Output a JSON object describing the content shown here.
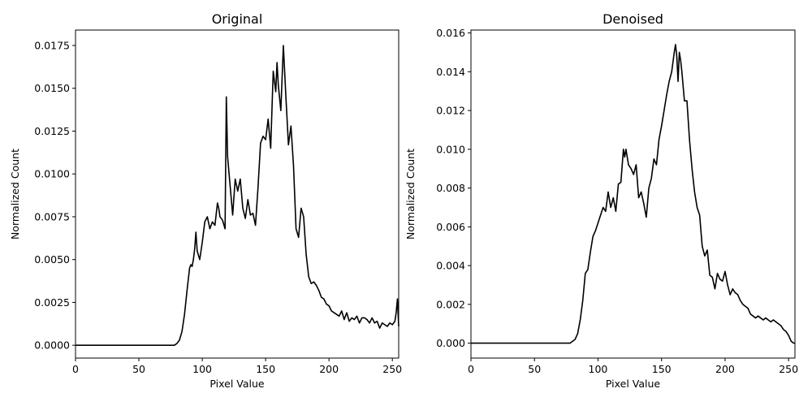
{
  "chart_data": [
    {
      "type": "line",
      "title": "Original",
      "xlabel": "Pixel Value",
      "ylabel": "Normalized Count",
      "xlim": [
        0,
        255
      ],
      "ylim": [
        -0.00075,
        0.0184
      ],
      "xticks": [
        0,
        50,
        100,
        150,
        200,
        250
      ],
      "yticks": [
        0.0,
        0.0025,
        0.005,
        0.0075,
        0.01,
        0.0125,
        0.015,
        0.0175
      ],
      "ytick_labels": [
        "0.0000",
        "0.0025",
        "0.0050",
        "0.0075",
        "0.0100",
        "0.0125",
        "0.0150",
        "0.0175"
      ],
      "grid": false,
      "line_color": "#000000",
      "series": [
        {
          "x": [
            0,
            78,
            80,
            82,
            84,
            86,
            88,
            90,
            91,
            92,
            93,
            94,
            95,
            96,
            98,
            100,
            102,
            104,
            106,
            108,
            110,
            112,
            113,
            114,
            116,
            118,
            119,
            120,
            122,
            124,
            126,
            128,
            130,
            132,
            134,
            136,
            138,
            140,
            142,
            144,
            146,
            148,
            150,
            152,
            154,
            156,
            158,
            159,
            160,
            162,
            164,
            166,
            168,
            170,
            172,
            174,
            176,
            178,
            180,
            182,
            184,
            186,
            188,
            190,
            192,
            194,
            196,
            198,
            200,
            202,
            204,
            206,
            208,
            210,
            212,
            214,
            216,
            218,
            220,
            222,
            224,
            226,
            228,
            230,
            232,
            234,
            236,
            238,
            240,
            242,
            244,
            246,
            248,
            250,
            252,
            253,
            254,
            255
          ],
          "y": [
            0,
            0,
            0.0001,
            0.0003,
            0.0008,
            0.0018,
            0.0032,
            0.0045,
            0.0047,
            0.0046,
            0.005,
            0.0056,
            0.0066,
            0.0055,
            0.005,
            0.006,
            0.0072,
            0.0075,
            0.0068,
            0.0072,
            0.007,
            0.0083,
            0.008,
            0.0075,
            0.0073,
            0.0068,
            0.0145,
            0.011,
            0.0093,
            0.0076,
            0.0097,
            0.009,
            0.0097,
            0.008,
            0.0074,
            0.0085,
            0.0076,
            0.0077,
            0.007,
            0.0092,
            0.0118,
            0.0122,
            0.012,
            0.0132,
            0.0115,
            0.016,
            0.0148,
            0.0165,
            0.0152,
            0.0137,
            0.0175,
            0.0145,
            0.0117,
            0.0128,
            0.0105,
            0.0068,
            0.0063,
            0.008,
            0.0075,
            0.0053,
            0.004,
            0.0036,
            0.0037,
            0.0035,
            0.0032,
            0.0028,
            0.0027,
            0.0024,
            0.0023,
            0.002,
            0.0019,
            0.0018,
            0.0017,
            0.002,
            0.0015,
            0.0019,
            0.0014,
            0.0016,
            0.0015,
            0.0017,
            0.0013,
            0.0016,
            0.0016,
            0.0015,
            0.0013,
            0.0016,
            0.0013,
            0.0014,
            0.001,
            0.0013,
            0.0012,
            0.0011,
            0.0013,
            0.0012,
            0.0014,
            0.0019,
            0.0027,
            0.0011
          ]
        }
      ]
    },
    {
      "type": "line",
      "title": "Denoised",
      "xlabel": "Pixel Value",
      "ylabel": "Normalized Count",
      "xlim": [
        0,
        255
      ],
      "ylim": [
        -0.00077,
        0.01615
      ],
      "xticks": [
        0,
        50,
        100,
        150,
        200,
        250
      ],
      "yticks": [
        0.0,
        0.002,
        0.004,
        0.006,
        0.008,
        0.01,
        0.012,
        0.014,
        0.016
      ],
      "ytick_labels": [
        "0.000",
        "0.002",
        "0.004",
        "0.006",
        "0.008",
        "0.010",
        "0.012",
        "0.014",
        "0.016"
      ],
      "grid": false,
      "line_color": "#000000",
      "series": [
        {
          "x": [
            0,
            78,
            80,
            82,
            84,
            86,
            88,
            90,
            92,
            94,
            96,
            98,
            100,
            102,
            104,
            106,
            108,
            110,
            112,
            114,
            116,
            118,
            120,
            121,
            122,
            124,
            126,
            128,
            130,
            132,
            134,
            136,
            138,
            140,
            142,
            144,
            146,
            148,
            150,
            152,
            154,
            156,
            158,
            160,
            161,
            162,
            163,
            164,
            165,
            166,
            168,
            170,
            172,
            174,
            176,
            178,
            180,
            182,
            184,
            186,
            188,
            190,
            192,
            194,
            196,
            198,
            200,
            202,
            204,
            206,
            208,
            210,
            212,
            214,
            216,
            218,
            220,
            222,
            224,
            226,
            228,
            230,
            232,
            234,
            236,
            238,
            240,
            242,
            244,
            246,
            248,
            250,
            252,
            254,
            255
          ],
          "y": [
            0,
            0,
            0.0001,
            0.0002,
            0.0005,
            0.0012,
            0.0022,
            0.0036,
            0.0038,
            0.0047,
            0.0055,
            0.0058,
            0.0062,
            0.0066,
            0.007,
            0.0068,
            0.0078,
            0.007,
            0.0075,
            0.0068,
            0.0082,
            0.0083,
            0.01,
            0.0096,
            0.01,
            0.0092,
            0.009,
            0.0087,
            0.0092,
            0.0075,
            0.0078,
            0.0072,
            0.0065,
            0.008,
            0.0085,
            0.0095,
            0.0092,
            0.0105,
            0.0112,
            0.012,
            0.0128,
            0.0135,
            0.014,
            0.015,
            0.0154,
            0.0148,
            0.0135,
            0.015,
            0.0146,
            0.014,
            0.0125,
            0.0125,
            0.0105,
            0.009,
            0.0078,
            0.007,
            0.0066,
            0.005,
            0.0045,
            0.0048,
            0.0035,
            0.0034,
            0.0028,
            0.0036,
            0.0033,
            0.0032,
            0.0037,
            0.003,
            0.0025,
            0.0028,
            0.0026,
            0.0025,
            0.0022,
            0.002,
            0.0019,
            0.0018,
            0.0015,
            0.0014,
            0.0013,
            0.0014,
            0.0013,
            0.0012,
            0.0013,
            0.0012,
            0.0011,
            0.0012,
            0.0011,
            0.001,
            0.0009,
            0.0007,
            0.0006,
            0.0004,
            0.0001,
            0.0,
            0.0
          ]
        }
      ]
    }
  ]
}
